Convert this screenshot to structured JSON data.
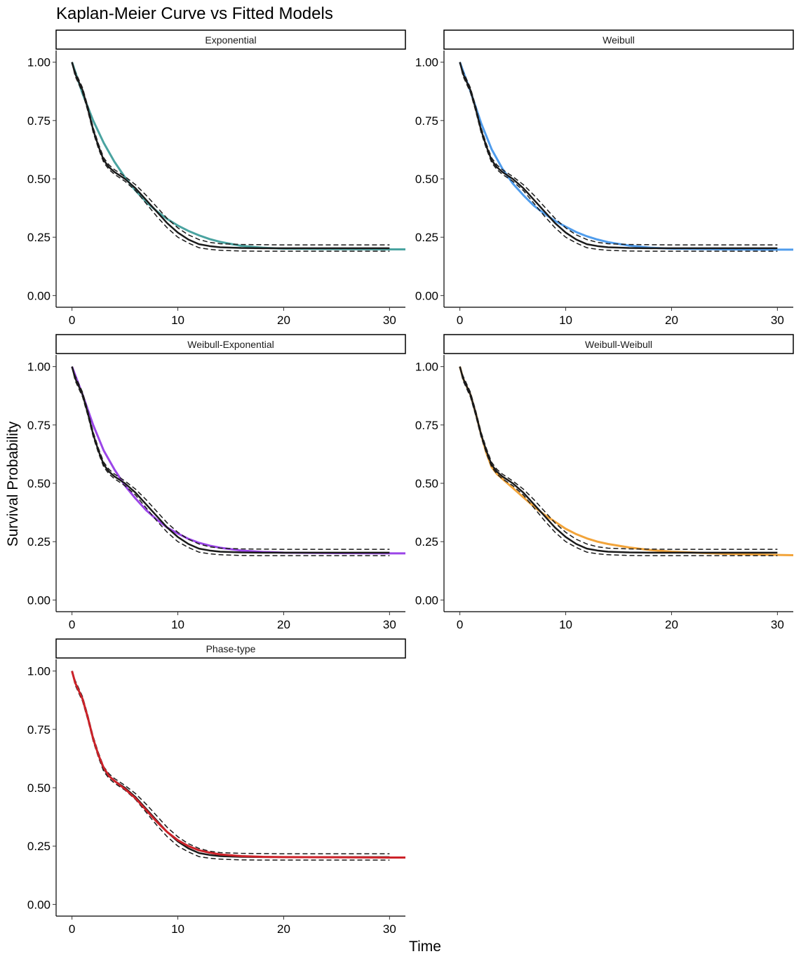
{
  "chart_data": {
    "type": "line",
    "title": "Kaplan-Meier Curve vs Fitted Models",
    "xlabel": "Time",
    "ylabel": "Survival Probability",
    "xlim": [
      -1.5,
      31.5
    ],
    "ylim": [
      -0.05,
      1.05
    ],
    "xticks": [
      0,
      10,
      20,
      30
    ],
    "yticks": [
      0.0,
      0.25,
      0.5,
      0.75,
      1.0
    ],
    "ytick_labels": [
      "0.00",
      "0.25",
      "0.50",
      "0.75",
      "1.00"
    ],
    "grid": false,
    "legend": "none",
    "km": {
      "name": "Kaplan-Meier",
      "color": "#1a1a1a",
      "time": [
        0,
        0.3,
        0.6,
        1,
        1.5,
        2,
        2.5,
        3,
        3.5,
        4,
        5,
        6,
        7,
        8,
        9,
        10,
        11,
        12,
        13,
        14,
        16,
        18,
        20,
        25,
        30
      ],
      "estimate": [
        1.0,
        0.95,
        0.92,
        0.88,
        0.8,
        0.71,
        0.64,
        0.58,
        0.55,
        0.53,
        0.5,
        0.46,
        0.41,
        0.36,
        0.31,
        0.27,
        0.24,
        0.22,
        0.212,
        0.207,
        0.204,
        0.203,
        0.203,
        0.203,
        0.203
      ],
      "ci_upper": [
        1.0,
        0.96,
        0.93,
        0.89,
        0.81,
        0.72,
        0.65,
        0.59,
        0.56,
        0.54,
        0.51,
        0.475,
        0.43,
        0.38,
        0.33,
        0.29,
        0.26,
        0.24,
        0.228,
        0.222,
        0.219,
        0.218,
        0.217,
        0.217,
        0.217
      ],
      "ci_lower": [
        1.0,
        0.94,
        0.91,
        0.87,
        0.79,
        0.7,
        0.63,
        0.57,
        0.54,
        0.52,
        0.49,
        0.45,
        0.395,
        0.34,
        0.29,
        0.25,
        0.225,
        0.205,
        0.198,
        0.194,
        0.191,
        0.19,
        0.19,
        0.19,
        0.19
      ]
    },
    "panels": [
      {
        "name": "Exponential",
        "color": "#4aa3a0",
        "time": [
          0,
          1,
          2,
          3,
          4,
          5,
          6,
          7,
          8,
          9,
          10,
          11,
          12,
          13,
          14,
          16,
          18,
          20,
          25,
          30,
          31.5
        ],
        "survival": [
          1.0,
          0.865,
          0.75,
          0.654,
          0.574,
          0.507,
          0.45,
          0.402,
          0.362,
          0.328,
          0.3,
          0.277,
          0.258,
          0.242,
          0.23,
          0.213,
          0.205,
          0.201,
          0.199,
          0.198,
          0.198
        ]
      },
      {
        "name": "Weibull",
        "color": "#4f9cec",
        "time": [
          0,
          1,
          2,
          3,
          4,
          5,
          6,
          7,
          8,
          9,
          10,
          11,
          12,
          13,
          14,
          16,
          18,
          20,
          25,
          30,
          31.5
        ],
        "survival": [
          1.0,
          0.875,
          0.74,
          0.627,
          0.545,
          0.48,
          0.43,
          0.385,
          0.35,
          0.32,
          0.295,
          0.272,
          0.254,
          0.24,
          0.229,
          0.214,
          0.205,
          0.201,
          0.198,
          0.197,
          0.197
        ]
      },
      {
        "name": "Weibull-Exponential",
        "color": "#9b45e8",
        "time": [
          0,
          1,
          2,
          3,
          4,
          5,
          6,
          7,
          8,
          9,
          10,
          11,
          12,
          13,
          14,
          16,
          18,
          20,
          25,
          30,
          31.5
        ],
        "survival": [
          1.0,
          0.88,
          0.75,
          0.64,
          0.56,
          0.49,
          0.435,
          0.385,
          0.345,
          0.31,
          0.285,
          0.262,
          0.245,
          0.233,
          0.224,
          0.212,
          0.206,
          0.203,
          0.201,
          0.2,
          0.2
        ]
      },
      {
        "name": "Weibull-Weibull",
        "color": "#f2a43a",
        "time": [
          0,
          0.3,
          0.6,
          1,
          1.5,
          2,
          2.5,
          3,
          3.5,
          4,
          5,
          6,
          7,
          8,
          9,
          10,
          11,
          12,
          13,
          14,
          16,
          18,
          20,
          25,
          30,
          31.5
        ],
        "survival": [
          1.0,
          0.95,
          0.92,
          0.88,
          0.8,
          0.71,
          0.63,
          0.57,
          0.54,
          0.52,
          0.48,
          0.44,
          0.4,
          0.365,
          0.335,
          0.305,
          0.282,
          0.264,
          0.25,
          0.24,
          0.225,
          0.214,
          0.207,
          0.198,
          0.193,
          0.192
        ]
      },
      {
        "name": "Phase-type",
        "color": "#cc2229",
        "time": [
          0,
          0.3,
          0.6,
          1,
          1.5,
          2,
          2.5,
          3,
          3.5,
          4,
          5,
          6,
          7,
          8,
          9,
          10,
          11,
          12,
          13,
          14,
          16,
          18,
          20,
          25,
          30,
          31.5
        ],
        "survival": [
          1.0,
          0.95,
          0.92,
          0.88,
          0.8,
          0.71,
          0.64,
          0.585,
          0.55,
          0.53,
          0.495,
          0.455,
          0.405,
          0.355,
          0.31,
          0.275,
          0.25,
          0.232,
          0.222,
          0.214,
          0.207,
          0.204,
          0.203,
          0.202,
          0.201,
          0.201
        ]
      }
    ]
  }
}
